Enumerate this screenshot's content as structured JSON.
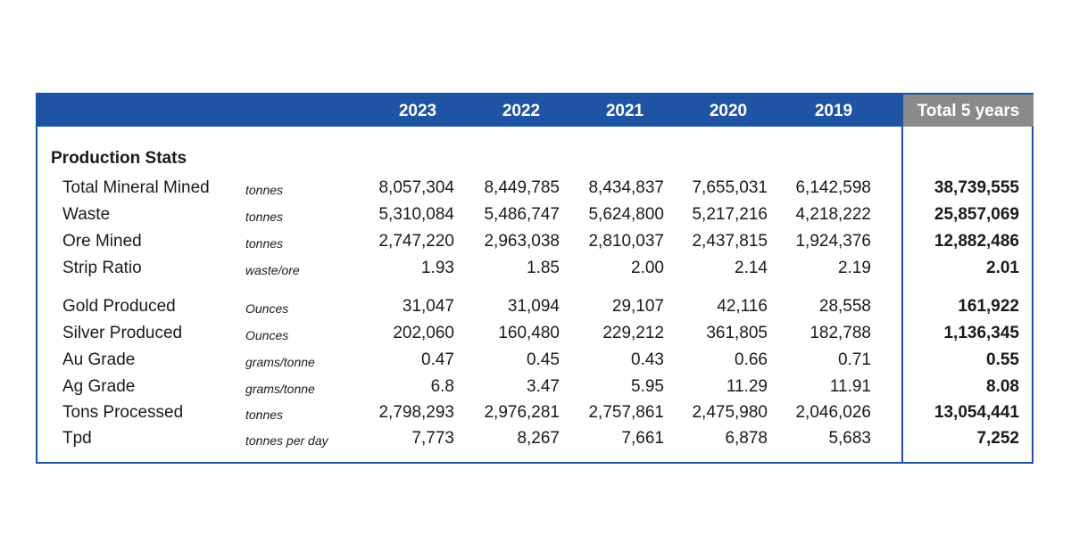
{
  "years": [
    "2023",
    "2022",
    "2021",
    "2020",
    "2019"
  ],
  "total_label": "Total 5 years",
  "section_title": "Production Stats",
  "rows": [
    {
      "label": "Total Mineral Mined",
      "unit": "tonnes",
      "values": [
        "8,057,304",
        "8,449,785",
        "8,434,837",
        "7,655,031",
        "6,142,598"
      ],
      "total": "38,739,555"
    },
    {
      "label": "Waste",
      "unit": "tonnes",
      "values": [
        "5,310,084",
        "5,486,747",
        "5,624,800",
        "5,217,216",
        "4,218,222"
      ],
      "total": "25,857,069"
    },
    {
      "label": "Ore Mined",
      "unit": "tonnes",
      "values": [
        "2,747,220",
        "2,963,038",
        "2,810,037",
        "2,437,815",
        "1,924,376"
      ],
      "total": "12,882,486"
    },
    {
      "label": "Strip Ratio",
      "unit": "waste/ore",
      "values": [
        "1.93",
        "1.85",
        "2.00",
        "2.14",
        "2.19"
      ],
      "total": "2.01"
    },
    {
      "label": "Gold Produced",
      "unit": "Ounces",
      "values": [
        "31,047",
        "31,094",
        "29,107",
        "42,116",
        "28,558"
      ],
      "total": "161,922"
    },
    {
      "label": "Silver Produced",
      "unit": "Ounces",
      "values": [
        "202,060",
        "160,480",
        "229,212",
        "361,805",
        "182,788"
      ],
      "total": "1,136,345"
    },
    {
      "label": "Au Grade",
      "unit": "grams/tonne",
      "values": [
        "0.47",
        "0.45",
        "0.43",
        "0.66",
        "0.71"
      ],
      "total": "0.55"
    },
    {
      "label": "Ag Grade",
      "unit": "grams/tonne",
      "values": [
        "6.8",
        "3.47",
        "5.95",
        "11.29",
        "11.91"
      ],
      "total": "8.08"
    },
    {
      "label": "Tons Processed",
      "unit": "tonnes",
      "values": [
        "2,798,293",
        "2,976,281",
        "2,757,861",
        "2,475,980",
        "2,046,026"
      ],
      "total": "13,054,441"
    },
    {
      "label": "Tpd",
      "unit": "tonnes per day",
      "values": [
        "7,773",
        "8,267",
        "7,661",
        "6,878",
        "5,683"
      ],
      "total": "7,252"
    }
  ],
  "colors": {
    "header_blue": "#1f53a3",
    "total_header_gray": "#8a8a8a"
  }
}
